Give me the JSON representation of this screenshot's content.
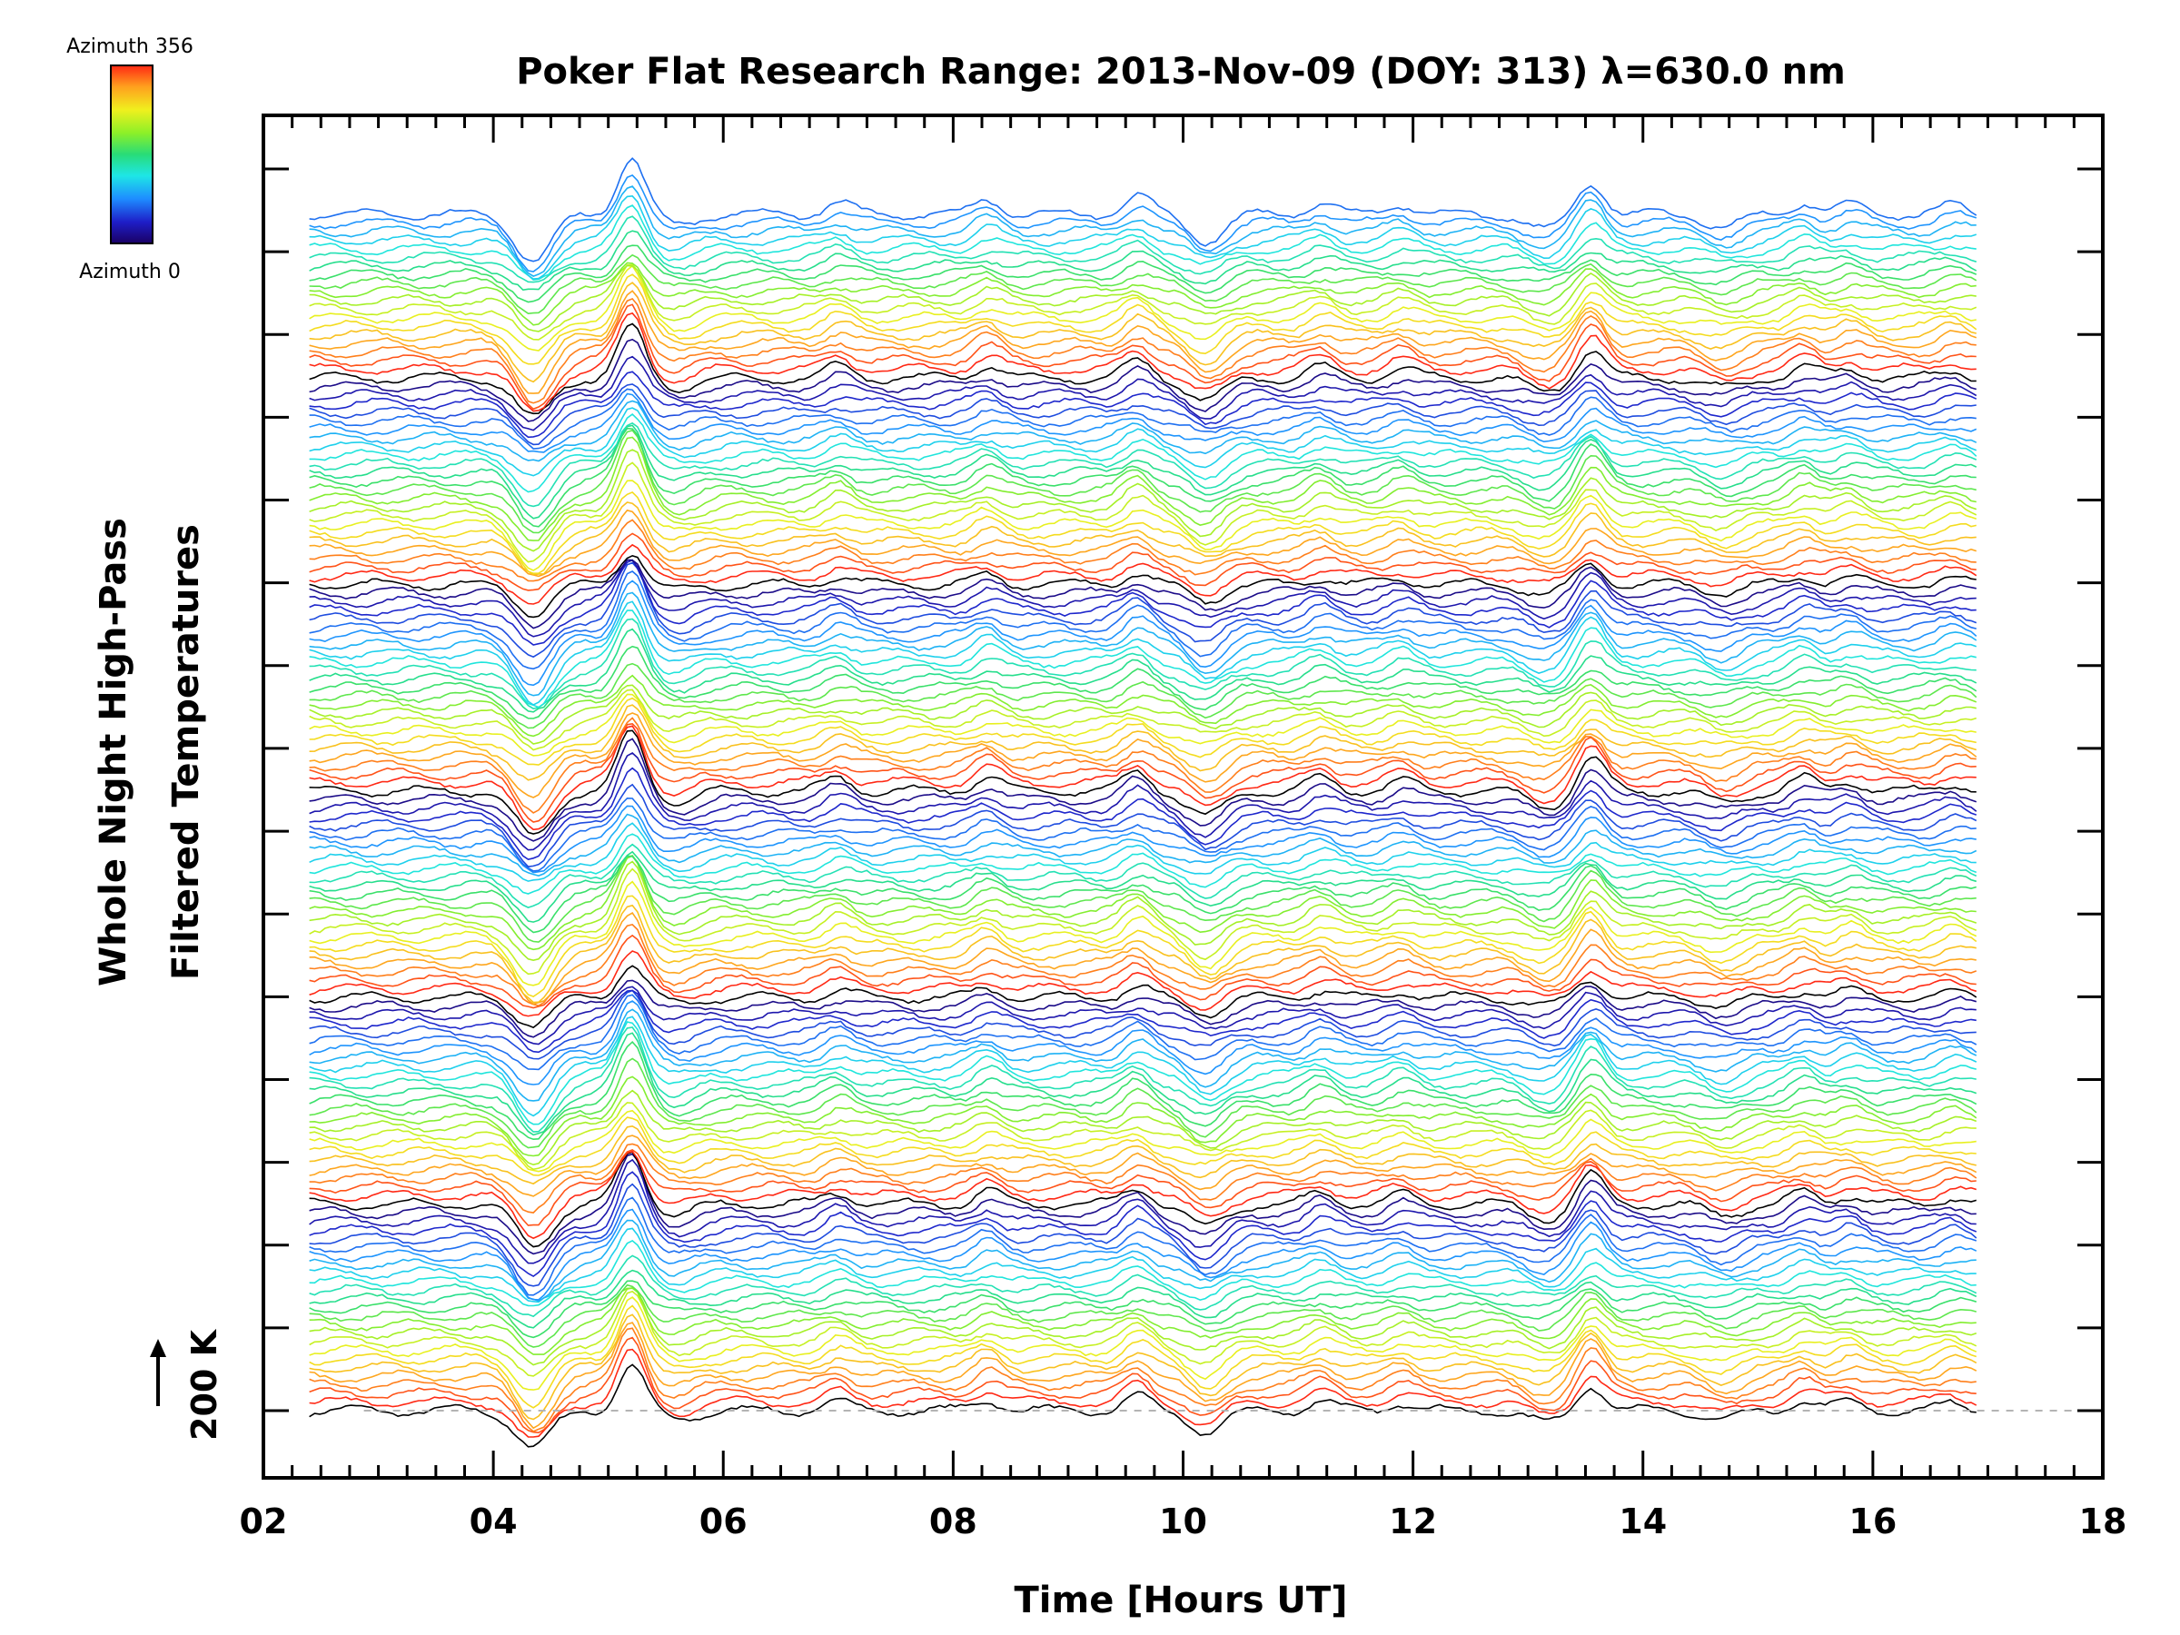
{
  "chart_data": {
    "type": "line",
    "title": "Poker Flat Research Range: 2013-Nov-09 (DOY: 313) λ=630.0 nm",
    "xlabel": "Time [Hours UT]",
    "ylabel_lines": [
      "Whole Night High-Pass",
      "Filtered Temperatures"
    ],
    "xlim": [
      2,
      18
    ],
    "x_ticks": [
      2,
      4,
      6,
      8,
      10,
      12,
      14,
      16,
      18
    ],
    "x_tick_labels": [
      "02",
      "04",
      "06",
      "08",
      "10",
      "12",
      "14",
      "16",
      "18"
    ],
    "x_minor_step": 0.25,
    "y_major_tick_count": 16,
    "scale_bar_label": "200 K",
    "time_range": [
      2.4,
      16.9
    ],
    "colorbar": {
      "top_label": "Azimuth 356",
      "bottom_label": "Azimuth 0",
      "azimuth_range": [
        0,
        356
      ],
      "colormap": "rainbow"
    },
    "series_count": 140,
    "series_per_azimuth_cycle": 24,
    "baseline_style": "dashed-gray",
    "common_features": [
      {
        "time": 4.35,
        "kind": "minimum",
        "value": -45
      },
      {
        "time": 5.2,
        "kind": "peak",
        "value": 55
      },
      {
        "time": 5.6,
        "kind": "minimum",
        "value": -10
      },
      {
        "time": 7.0,
        "kind": "peak",
        "value": 12
      },
      {
        "time": 8.3,
        "kind": "peak",
        "value": 14
      },
      {
        "time": 9.6,
        "kind": "peak",
        "value": 18
      },
      {
        "time": 10.2,
        "kind": "minimum",
        "value": -25
      },
      {
        "time": 11.2,
        "kind": "peak",
        "value": 12
      },
      {
        "time": 11.9,
        "kind": "peak",
        "value": 10
      },
      {
        "time": 13.15,
        "kind": "minimum",
        "value": -15
      },
      {
        "time": 13.55,
        "kind": "peak",
        "value": 32
      },
      {
        "time": 14.7,
        "kind": "minimum",
        "value": -12
      },
      {
        "time": 15.4,
        "kind": "peak",
        "value": 12
      },
      {
        "time": 15.8,
        "kind": "peak",
        "value": 10
      },
      {
        "time": 16.7,
        "kind": "peak",
        "value": 8
      }
    ],
    "grid": false,
    "legend": "colorbar top-left"
  }
}
